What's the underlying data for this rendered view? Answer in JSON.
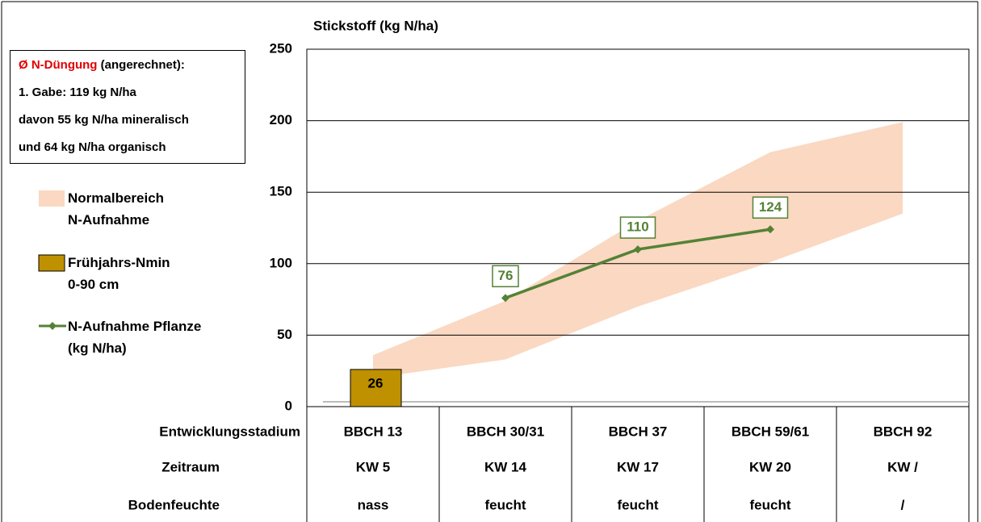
{
  "chart_data": {
    "type": "line",
    "title": "Stickstoff (kg N/ha)",
    "x_label": "Entwicklungsstadium",
    "categories": [
      "BBCH 13",
      "BBCH 30/31",
      "BBCH 37",
      "BBCH 59/61",
      "BBCH 92"
    ],
    "ylim": [
      0,
      250
    ],
    "yticks": [
      0,
      50,
      100,
      150,
      200,
      250
    ],
    "grid": true,
    "band": {
      "name": "Normalbereich\nN-Aufnahme",
      "color": "#f8cbad",
      "values": [
        36,
        74,
        130,
        178,
        199
      ],
      "lower": [
        20,
        33,
        70,
        101,
        135
      ]
    },
    "bar": {
      "name": "Frühjahrs-Nmin\n0-90 cm",
      "color": "#bf9000",
      "values": [
        26,
        null,
        null,
        null,
        null
      ]
    },
    "series": [
      {
        "name": "N-Aufnahme Pflanze\n(kg N/ha)",
        "color": "#548235",
        "values": [
          null,
          76,
          110,
          124,
          null
        ]
      }
    ],
    "table": {
      "rows": [
        {
          "label": "Zeitraum",
          "cells": [
            "KW 5",
            "KW 14",
            "KW 17",
            "KW 20",
            "KW /"
          ]
        },
        {
          "label": "Bodenfeuchte",
          "cells": [
            "nass",
            "feucht",
            "feucht",
            "feucht",
            "/"
          ]
        }
      ]
    },
    "annotation": {
      "title_red": "Ø N-Düngung",
      "title_rest": "(angerechnet):",
      "lines": [
        "1. Gabe: 119 kg N/ha",
        "davon 55 kg N/ha mineralisch",
        "und 64 kg N/ha organisch"
      ]
    }
  }
}
